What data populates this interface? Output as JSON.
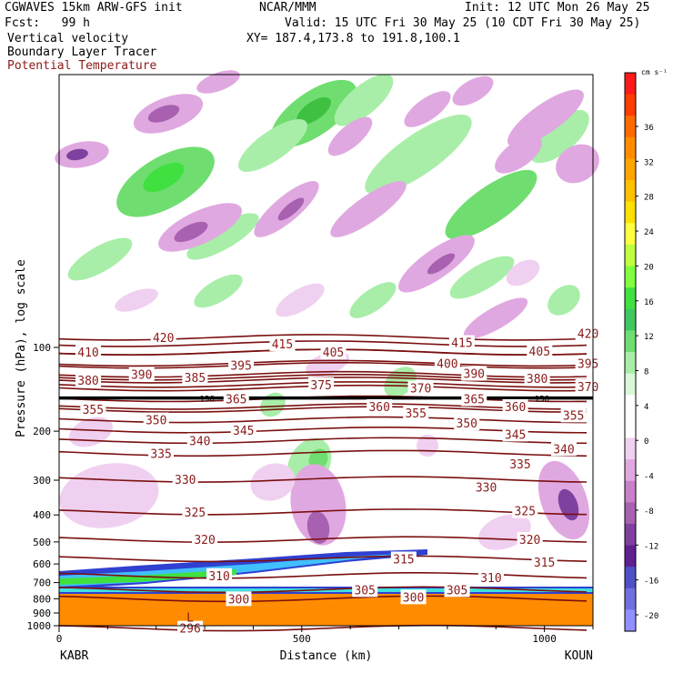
{
  "header": {
    "model": "CGWAVES 15km ARW-GFS init",
    "fcst": "Fcst:   99 h",
    "org": "NCAR/MMM",
    "init": "Init: 12 UTC Mon 26 May 25",
    "valid": "Valid: 15 UTC Fri 30 May 25 (10 CDT Fri 30 May 25)",
    "xy": "XY= 187.4,173.8 to 191.8,100.1",
    "field1": "Vertical velocity",
    "field2": "Boundary Layer Tracer",
    "field3": "Potential Temperature"
  },
  "colors": {
    "theta_contour": "#7a0f0f",
    "tropopause": "#000000",
    "ground": "#ff8c00"
  },
  "chart_data": {
    "type": "heatmap",
    "xlabel": "Distance (km)",
    "ylabel": "Pressure (hPa), log scale",
    "x_ticks": [
      0,
      500,
      1000
    ],
    "xlim": [
      0,
      1100
    ],
    "y_ticks": [
      100,
      200,
      300,
      400,
      500,
      600,
      700,
      800,
      900,
      1000
    ],
    "y_scale": "log",
    "left_station": "KABR",
    "right_station": "KOUN",
    "colorbar": {
      "unit": "cm s⁻¹",
      "labels": [
        36,
        32,
        28,
        24,
        20,
        16,
        12,
        8,
        4,
        0,
        -4,
        -8,
        -12,
        -16,
        -20
      ],
      "colors": [
        "#ff1a1a",
        "#ff3d00",
        "#ff6a00",
        "#ff8c00",
        "#ffa500",
        "#ffc000",
        "#ffe000",
        "#ffff40",
        "#c0ff40",
        "#80ff40",
        "#40e040",
        "#40c860",
        "#70dd70",
        "#a8eea8",
        "#d8f8d8",
        "#ffffff",
        "#ffffff",
        "#f0d0f0",
        "#e0a8e0",
        "#c880c8",
        "#a860b0",
        "#8040a0",
        "#602090",
        "#5050c8",
        "#7070e0",
        "#9090ff"
      ]
    },
    "theta_labels": [
      {
        "text": "420",
        "x": 215,
        "p": 92
      },
      {
        "text": "420",
        "x": 1090,
        "p": 89
      },
      {
        "text": "415",
        "x": 460,
        "p": 97
      },
      {
        "text": "415",
        "x": 830,
        "p": 96
      },
      {
        "text": "410",
        "x": 60,
        "p": 104
      },
      {
        "text": "405",
        "x": 565,
        "p": 104
      },
      {
        "text": "405",
        "x": 990,
        "p": 103
      },
      {
        "text": "400",
        "x": 800,
        "p": 114
      },
      {
        "text": "395",
        "x": 375,
        "p": 116
      },
      {
        "text": "395",
        "x": 1090,
        "p": 114
      },
      {
        "text": "390",
        "x": 170,
        "p": 125
      },
      {
        "text": "390",
        "x": 855,
        "p": 124
      },
      {
        "text": "385",
        "x": 280,
        "p": 128
      },
      {
        "text": "380",
        "x": 60,
        "p": 131
      },
      {
        "text": "380",
        "x": 985,
        "p": 129
      },
      {
        "text": "375",
        "x": 540,
        "p": 136
      },
      {
        "text": "370",
        "x": 745,
        "p": 140
      },
      {
        "text": "370",
        "x": 1090,
        "p": 138
      },
      {
        "text": "365",
        "x": 365,
        "p": 153
      },
      {
        "text": "365",
        "x": 855,
        "p": 153
      },
      {
        "text": "360",
        "x": 660,
        "p": 163
      },
      {
        "text": "360",
        "x": 940,
        "p": 163
      },
      {
        "text": "355",
        "x": 70,
        "p": 167
      },
      {
        "text": "355",
        "x": 735,
        "p": 172
      },
      {
        "text": "355",
        "x": 1060,
        "p": 175
      },
      {
        "text": "350",
        "x": 200,
        "p": 182
      },
      {
        "text": "350",
        "x": 840,
        "p": 187
      },
      {
        "text": "345",
        "x": 380,
        "p": 198
      },
      {
        "text": "345",
        "x": 940,
        "p": 205
      },
      {
        "text": "340",
        "x": 290,
        "p": 216
      },
      {
        "text": "340",
        "x": 1040,
        "p": 231
      },
      {
        "text": "335",
        "x": 210,
        "p": 240
      },
      {
        "text": "335",
        "x": 950,
        "p": 262
      },
      {
        "text": "330",
        "x": 260,
        "p": 298
      },
      {
        "text": "330",
        "x": 880,
        "p": 318
      },
      {
        "text": "325",
        "x": 280,
        "p": 390
      },
      {
        "text": "325",
        "x": 960,
        "p": 386
      },
      {
        "text": "320",
        "x": 300,
        "p": 490
      },
      {
        "text": "320",
        "x": 970,
        "p": 490
      },
      {
        "text": "315",
        "x": 710,
        "p": 575
      },
      {
        "text": "315",
        "x": 1000,
        "p": 590
      },
      {
        "text": "310",
        "x": 330,
        "p": 660
      },
      {
        "text": "310",
        "x": 890,
        "p": 670
      },
      {
        "text": "305",
        "x": 630,
        "p": 742
      },
      {
        "text": "305",
        "x": 820,
        "p": 742
      },
      {
        "text": "300",
        "x": 370,
        "p": 800
      },
      {
        "text": "300",
        "x": 730,
        "p": 788
      },
      {
        "text": "296",
        "x": 270,
        "p": 1020
      }
    ],
    "tropopause_labels": [
      {
        "text": "158",
        "x": 305,
        "p": 152
      },
      {
        "text": "158",
        "x": 995,
        "p": 152
      }
    ],
    "low_marker": {
      "text": "L",
      "x": 270,
      "p": 930
    }
  }
}
